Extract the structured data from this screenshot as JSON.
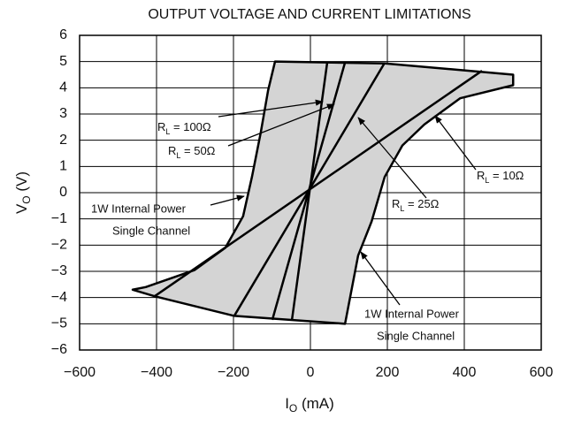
{
  "chart_data": {
    "type": "region",
    "title": "OUTPUT VOLTAGE AND CURRENT LIMITATIONS",
    "x_label": {
      "text": "I",
      "sub": "O",
      "rest": " (mA)"
    },
    "y_label": {
      "text": "V",
      "sub": "O",
      "rest": " (V)"
    },
    "xlim": [
      -600,
      600
    ],
    "xticks": [
      {
        "value": -600,
        "label": "−600"
      },
      {
        "value": -400,
        "label": "−400"
      },
      {
        "value": -200,
        "label": "−200"
      },
      0,
      200,
      400,
      600
    ],
    "ylim": [
      -6,
      6
    ],
    "yticks": [
      {
        "value": -6,
        "label": "−6"
      },
      {
        "value": -5,
        "label": "−5"
      },
      {
        "value": -4,
        "label": "−4"
      },
      {
        "value": -3,
        "label": "−3"
      },
      {
        "value": -2,
        "label": "−2"
      },
      {
        "value": -1,
        "label": "−1"
      },
      0,
      1,
      2,
      3,
      4,
      5,
      6
    ],
    "grid": true,
    "region": {
      "color": "#d4d4d4",
      "x": [
        -92,
        193,
        527,
        527,
        389,
        296,
        239,
        193,
        159,
        124,
        90,
        -198,
        -405,
        -462,
        -428,
        -301,
        -221,
        -175,
        -152,
        -129,
        -110
      ],
      "y": [
        5,
        4.93,
        4.5,
        4.1,
        3.6,
        2.6,
        1.8,
        0.6,
        -1.1,
        -2.4,
        -5,
        -4.7,
        -3.95,
        -3.7,
        -3.6,
        -2.95,
        -2.1,
        -0.9,
        0.6,
        2.3,
        3.9
      ]
    },
    "lines": [
      {
        "x": [
          -405,
          446
        ],
        "y": [
          -3.95,
          4.65
        ]
      },
      {
        "x": [
          -198,
          193
        ],
        "y": [
          -4.7,
          4.95
        ]
      },
      {
        "x": [
          -99,
          90
        ],
        "y": [
          -4.85,
          4.97
        ]
      },
      {
        "x": [
          -48,
          44
        ],
        "y": [
          -4.85,
          5
        ]
      }
    ],
    "annotations": [
      {
        "text": "R",
        "sub": "L",
        "rest": " = 100Ω"
      },
      {
        "text": "R",
        "sub": "L",
        "rest": " = 50Ω"
      },
      {
        "text": "R",
        "sub": "L",
        "rest": " = 10Ω"
      },
      {
        "text": "R",
        "sub": "L",
        "rest": " = 25Ω"
      },
      {
        "lines": [
          "1W Internal Power",
          "Single Channel"
        ]
      },
      {
        "lines": [
          "1W Internal Power",
          "Single Channel"
        ]
      }
    ]
  }
}
